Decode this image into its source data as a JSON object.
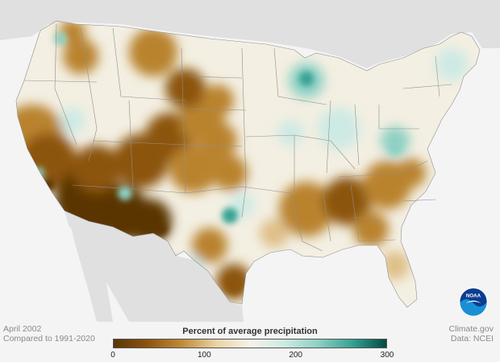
{
  "map": {
    "colors": {
      "ocean": "#f4f4f4",
      "neighbor_land": "#e0e0e0",
      "state_borders": "#8f8f8f",
      "dry_extreme": "#5a3505",
      "dry_strong": "#8c5510",
      "dry": "#b9832f",
      "dry_mild": "#dfc089",
      "near_normal": "#f3efe2",
      "wet_mild": "#cdeae4",
      "wet": "#8ed0c4",
      "wet_strong": "#36a293",
      "wet_extreme": "#044a42"
    }
  },
  "footer": {
    "left_line1": "April 2002",
    "left_line2": "Compared to 1991-2020",
    "right_line1": "Climate.gov",
    "right_line2": "Data: NCEI"
  },
  "legend": {
    "title": "Percent of average precipitation",
    "ticks": [
      "0",
      "100",
      "200",
      "300"
    ],
    "min": 0,
    "max": 300,
    "gradient": [
      "#5a3505",
      "#8c5510",
      "#c08a3a",
      "#e8d3a4",
      "#f6f3ea",
      "#cdeae4",
      "#8ed0c4",
      "#36a293",
      "#044a42"
    ]
  },
  "logo": {
    "label": "NOAA"
  }
}
